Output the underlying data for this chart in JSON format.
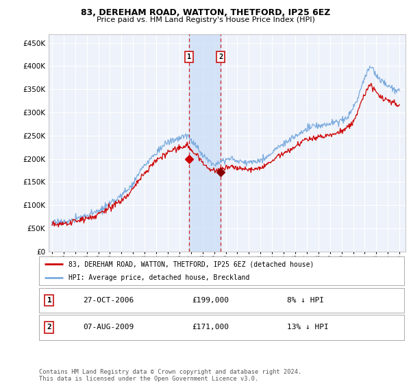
{
  "title": "83, DEREHAM ROAD, WATTON, THETFORD, IP25 6EZ",
  "subtitle": "Price paid vs. HM Land Registry's House Price Index (HPI)",
  "ytick_values": [
    0,
    50000,
    100000,
    150000,
    200000,
    250000,
    300000,
    350000,
    400000,
    450000
  ],
  "ylim": [
    0,
    468000
  ],
  "xlim_start": 1994.7,
  "xlim_end": 2025.5,
  "background_color": "#ffffff",
  "plot_bg_color": "#eef2fa",
  "grid_color": "#ffffff",
  "hpi_line_color": "#7aaadd",
  "price_line_color": "#cc0000",
  "shade_color": "#c8dcf5",
  "transaction1_x": 2006.82,
  "transaction1_y": 199000,
  "transaction2_x": 2009.58,
  "transaction2_y": 171000,
  "legend_line1": "83, DEREHAM ROAD, WATTON, THETFORD, IP25 6EZ (detached house)",
  "legend_line2": "HPI: Average price, detached house, Breckland",
  "table_row1_date": "27-OCT-2006",
  "table_row1_price": "£199,000",
  "table_row1_hpi": "8% ↓ HPI",
  "table_row2_date": "07-AUG-2009",
  "table_row2_price": "£171,000",
  "table_row2_hpi": "13% ↓ HPI",
  "footer": "Contains HM Land Registry data © Crown copyright and database right 2024.\nThis data is licensed under the Open Government Licence v3.0.",
  "hpi_x": [
    1995.0,
    1995.25,
    1995.5,
    1995.75,
    1996.0,
    1996.25,
    1996.5,
    1996.75,
    1997.0,
    1997.25,
    1997.5,
    1997.75,
    1998.0,
    1998.25,
    1998.5,
    1998.75,
    1999.0,
    1999.25,
    1999.5,
    1999.75,
    2000.0,
    2000.25,
    2000.5,
    2000.75,
    2001.0,
    2001.25,
    2001.5,
    2001.75,
    2002.0,
    2002.25,
    2002.5,
    2002.75,
    2003.0,
    2003.25,
    2003.5,
    2003.75,
    2004.0,
    2004.25,
    2004.5,
    2004.75,
    2005.0,
    2005.25,
    2005.5,
    2005.75,
    2006.0,
    2006.25,
    2006.5,
    2006.75,
    2007.0,
    2007.25,
    2007.5,
    2007.75,
    2008.0,
    2008.25,
    2008.5,
    2008.75,
    2009.0,
    2009.25,
    2009.5,
    2009.75,
    2010.0,
    2010.25,
    2010.5,
    2010.75,
    2011.0,
    2011.25,
    2011.5,
    2011.75,
    2012.0,
    2012.25,
    2012.5,
    2012.75,
    2013.0,
    2013.25,
    2013.5,
    2013.75,
    2014.0,
    2014.25,
    2014.5,
    2014.75,
    2015.0,
    2015.25,
    2015.5,
    2015.75,
    2016.0,
    2016.25,
    2016.5,
    2016.75,
    2017.0,
    2017.25,
    2017.5,
    2017.75,
    2018.0,
    2018.25,
    2018.5,
    2018.75,
    2019.0,
    2019.25,
    2019.5,
    2019.75,
    2020.0,
    2020.25,
    2020.5,
    2020.75,
    2021.0,
    2021.25,
    2021.5,
    2021.75,
    2022.0,
    2022.25,
    2022.5,
    2022.75,
    2023.0,
    2023.25,
    2023.5,
    2023.75,
    2024.0,
    2024.25,
    2024.5,
    2024.75,
    2025.0
  ],
  "hpi_y": [
    63000,
    62000,
    63000,
    65000,
    65000,
    64000,
    66000,
    67000,
    70000,
    72000,
    74000,
    76000,
    78000,
    80000,
    82000,
    84000,
    86000,
    90000,
    94000,
    98000,
    102000,
    107000,
    112000,
    117000,
    121000,
    127000,
    133000,
    139000,
    147000,
    158000,
    168000,
    178000,
    185000,
    192000,
    200000,
    207000,
    213000,
    220000,
    226000,
    231000,
    235000,
    238000,
    240000,
    242000,
    244000,
    247000,
    249000,
    252000,
    237000,
    232000,
    228000,
    218000,
    210000,
    203000,
    196000,
    191000,
    190000,
    192000,
    196000,
    196000,
    198000,
    200000,
    200000,
    198000,
    196000,
    194000,
    193000,
    192000,
    192000,
    194000,
    195000,
    196000,
    197000,
    200000,
    204000,
    208000,
    212000,
    218000,
    224000,
    228000,
    232000,
    237000,
    240000,
    244000,
    248000,
    253000,
    257000,
    261000,
    264000,
    267000,
    269000,
    270000,
    271000,
    272000,
    273000,
    274000,
    275000,
    277000,
    279000,
    281000,
    283000,
    286000,
    291000,
    298000,
    309000,
    323000,
    338000,
    356000,
    374000,
    389000,
    396000,
    392000,
    381000,
    373000,
    367000,
    362000,
    357000,
    353000,
    350000,
    348000,
    350000
  ],
  "price_x": [
    1995.0,
    1995.25,
    1995.5,
    1995.75,
    1996.0,
    1996.25,
    1996.5,
    1996.75,
    1997.0,
    1997.25,
    1997.5,
    1997.75,
    1998.0,
    1998.25,
    1998.5,
    1998.75,
    1999.0,
    1999.25,
    1999.5,
    1999.75,
    2000.0,
    2000.25,
    2000.5,
    2000.75,
    2001.0,
    2001.25,
    2001.5,
    2001.75,
    2002.0,
    2002.25,
    2002.5,
    2002.75,
    2003.0,
    2003.25,
    2003.5,
    2003.75,
    2004.0,
    2004.25,
    2004.5,
    2004.75,
    2005.0,
    2005.25,
    2005.5,
    2005.75,
    2006.0,
    2006.25,
    2006.5,
    2006.75,
    2007.0,
    2007.25,
    2007.5,
    2007.75,
    2008.0,
    2008.25,
    2008.5,
    2008.75,
    2009.0,
    2009.25,
    2009.5,
    2009.75,
    2010.0,
    2010.25,
    2010.5,
    2010.75,
    2011.0,
    2011.25,
    2011.5,
    2011.75,
    2012.0,
    2012.25,
    2012.5,
    2012.75,
    2013.0,
    2013.25,
    2013.5,
    2013.75,
    2014.0,
    2014.25,
    2014.5,
    2014.75,
    2015.0,
    2015.25,
    2015.5,
    2015.75,
    2016.0,
    2016.25,
    2016.5,
    2016.75,
    2017.0,
    2017.25,
    2017.5,
    2017.75,
    2018.0,
    2018.25,
    2018.5,
    2018.75,
    2019.0,
    2019.25,
    2019.5,
    2019.75,
    2020.0,
    2020.25,
    2020.5,
    2020.75,
    2021.0,
    2021.25,
    2021.5,
    2021.75,
    2022.0,
    2022.25,
    2022.5,
    2022.75,
    2023.0,
    2023.25,
    2023.5,
    2023.75,
    2024.0,
    2024.25,
    2024.5,
    2024.75,
    2025.0
  ],
  "price_y": [
    58000,
    57000,
    58000,
    59000,
    60000,
    59000,
    61000,
    62000,
    65000,
    67000,
    68000,
    70000,
    72000,
    74000,
    75000,
    77000,
    80000,
    83000,
    87000,
    90000,
    94000,
    98000,
    103000,
    107000,
    111000,
    117000,
    122000,
    128000,
    135000,
    145000,
    154000,
    163000,
    170000,
    177000,
    183000,
    189000,
    195000,
    201000,
    206000,
    210000,
    214000,
    218000,
    220000,
    221000,
    223000,
    225000,
    227000,
    231000,
    217000,
    213000,
    209000,
    200000,
    193000,
    186000,
    180000,
    175000,
    174000,
    176000,
    180000,
    179000,
    181000,
    183000,
    183000,
    181000,
    179000,
    178000,
    177000,
    176000,
    176000,
    178000,
    179000,
    180000,
    181000,
    183000,
    187000,
    191000,
    194000,
    200000,
    205000,
    208000,
    212000,
    216000,
    219000,
    222000,
    227000,
    231000,
    235000,
    238000,
    241000,
    243000,
    245000,
    246000,
    247000,
    248000,
    249000,
    250000,
    251000,
    253000,
    255000,
    257000,
    259000,
    262000,
    266000,
    272000,
    282000,
    294000,
    308000,
    323000,
    339000,
    353000,
    359000,
    355000,
    345000,
    338000,
    333000,
    329000,
    325000,
    322000,
    319000,
    317000,
    315000
  ]
}
